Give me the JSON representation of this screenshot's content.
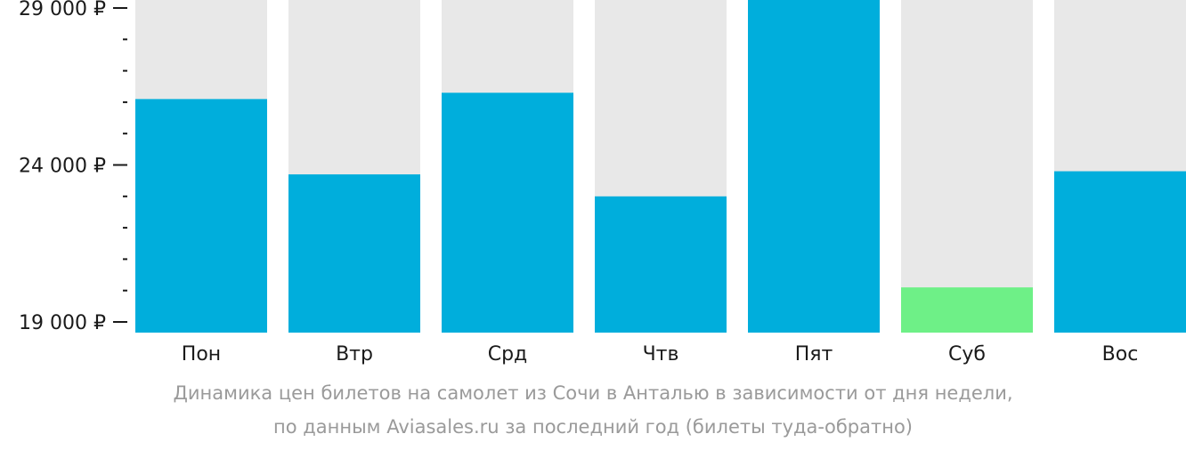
{
  "chart_data": {
    "type": "bar",
    "title": "",
    "xlabel": "",
    "ylabel": "",
    "ylim": [
      19000,
      29000
    ],
    "y_tick_labels": [
      "29 000 ₽",
      "24 000 ₽",
      "19 000 ₽"
    ],
    "y_tick_values": [
      29000,
      24000,
      19000
    ],
    "y_minor_step": 1000,
    "categories": [
      "Пон",
      "Втр",
      "Срд",
      "Чтв",
      "Пят",
      "Суб",
      "Вос"
    ],
    "values": [
      26100,
      23700,
      26300,
      23000,
      29300,
      20100,
      23800
    ],
    "highlight_index": 5,
    "grid": false,
    "legend": "none",
    "colors": {
      "bar": "#00aedc",
      "bar_highlight": "#6ef087",
      "bar_background": "#e8e8e8",
      "axis": "#1a1a1a",
      "tick_text": "#1a1a1a",
      "caption_text": "#9a9a9a"
    }
  },
  "caption": {
    "line1": "Динамика цен билетов на самолет из Сочи в Анталью в зависимости от дня недели,",
    "line2": "по данным Aviasales.ru за последний год (билеты туда-обратно)"
  }
}
